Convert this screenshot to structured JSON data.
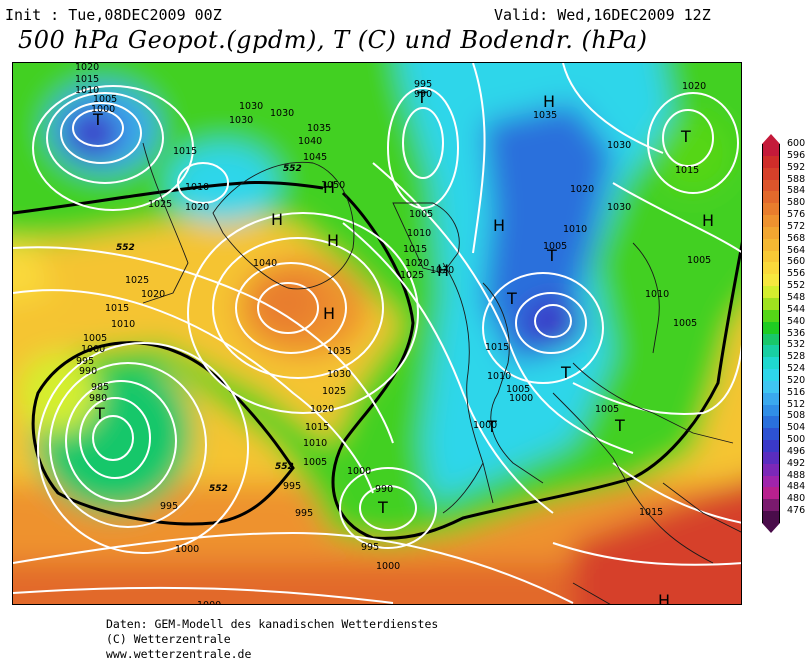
{
  "header": {
    "init": "Init : Tue,08DEC2009 00Z",
    "valid": "Valid: Wed,16DEC2009 12Z",
    "title": "500 hPa Geopot.(gpdm), T (C) und Bodendr. (hPa)"
  },
  "footer": {
    "line1": "Daten: GEM-Modell des kanadischen Wetterdienstes",
    "line2": "(C) Wetterzentrale",
    "line3": "www.wetterzentrale.de"
  },
  "legend": {
    "levels": [
      "600",
      "596",
      "592",
      "588",
      "584",
      "580",
      "576",
      "572",
      "568",
      "564",
      "560",
      "556",
      "552",
      "548",
      "544",
      "540",
      "536",
      "532",
      "528",
      "524",
      "520",
      "516",
      "512",
      "508",
      "504",
      "500",
      "496",
      "492",
      "488",
      "484",
      "480",
      "476"
    ],
    "colors": [
      "#c41a3a",
      "#cf2d2a",
      "#d6402a",
      "#dc552b",
      "#e2692c",
      "#e87d2d",
      "#ee922f",
      "#f2a631",
      "#f5b833",
      "#f8c936",
      "#fad93b",
      "#f7e73f",
      "#d4ee2e",
      "#9fe21f",
      "#55d617",
      "#1fcc22",
      "#19c76a",
      "#18cfa2",
      "#1fd8cf",
      "#2ed6ea",
      "#3fc6f2",
      "#3aa9ee",
      "#308ee6",
      "#2a70dc",
      "#2d52d2",
      "#3a39c8",
      "#5a2dc0",
      "#7c28b8",
      "#a024ac",
      "#b8208e",
      "#7a1a6e",
      "#4a0c4a"
    ]
  },
  "map": {
    "pressure_labels": [
      "1020",
      "1015",
      "1010",
      "1005",
      "1000",
      "1030",
      "1015",
      "1010",
      "1020",
      "1025",
      "1030",
      "1030",
      "1035",
      "1040",
      "1045",
      "1050",
      "995",
      "990",
      "1035",
      "1030",
      "1020",
      "1015",
      "1005",
      "1010",
      "1015",
      "1020",
      "1025",
      "1030",
      "1020",
      "1010",
      "1005",
      "1005",
      "1010",
      "1005",
      "1000",
      "1015",
      "1010",
      "1005",
      "1000",
      "1015",
      "1030",
      "1040",
      "1025",
      "1020",
      "1015",
      "1010",
      "1005",
      "1000",
      "995",
      "990",
      "985",
      "980",
      "1035",
      "1030",
      "1025",
      "1020",
      "1015",
      "1010",
      "1005",
      "1000",
      "995",
      "990",
      "995",
      "995",
      "1000",
      "1000",
      "995",
      "1000",
      "1005",
      "1015"
    ],
    "highs": [
      "H",
      "H",
      "H",
      "H",
      "H",
      "H",
      "H",
      "H",
      "H"
    ],
    "lows": [
      "T",
      "T",
      "T",
      "T",
      "T",
      "T",
      "T",
      "T",
      "T",
      "T"
    ],
    "contour_552": [
      "552",
      "552",
      "552",
      "552"
    ]
  }
}
